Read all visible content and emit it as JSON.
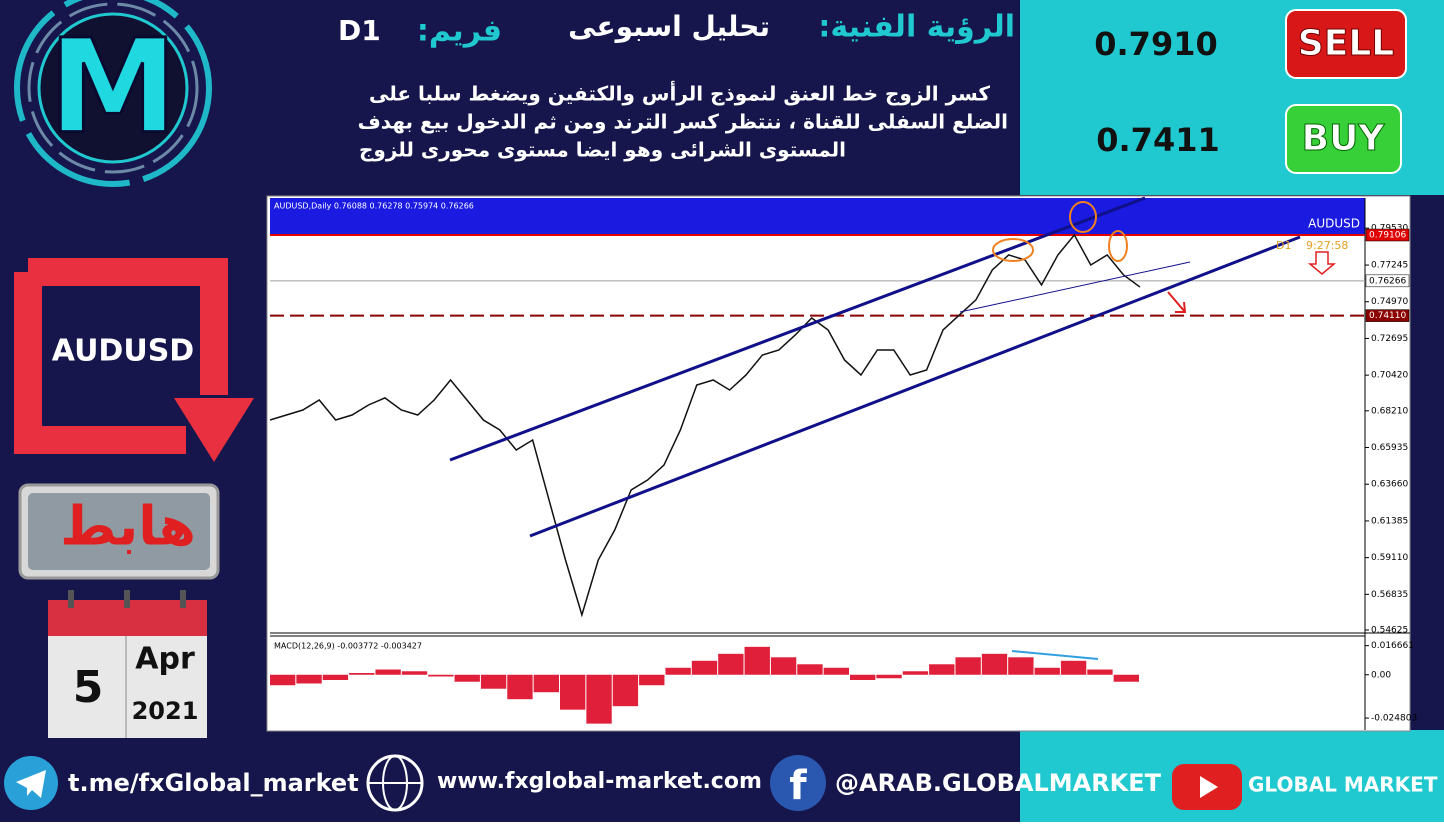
{
  "header": {
    "title_label": "الرؤية الفنية:",
    "analysis": "تحليل اسبوعى",
    "frame_label": "فريم:",
    "frame": "D1"
  },
  "description": [
    "كسر الزوج خط العنق لنموذج الرأس والكتفين ويضغط سلبا على",
    "الضلع السفلى للقناة ، ننتظر كسر الترند ومن ثم الدخول بيع بهدف",
    "المستوى الشرائى وهو ايضا مستوى محورى للزوج"
  ],
  "signals": [
    {
      "price": "0.7910",
      "action": "SELL"
    },
    {
      "price": "0.7411",
      "action": "BUY"
    }
  ],
  "logo": "M",
  "pair": "AUDUSD",
  "direction": "هابط",
  "date": {
    "day": "5",
    "month": "Apr",
    "year": "2021"
  },
  "chart": {
    "title": "AUDUSD,Daily  0.76088 0.76278 0.75974 0.76266",
    "symbol": "AUDUSD",
    "timeframe": "D1",
    "timer": "9:27:58",
    "ylim": [
      0.545,
      0.814
    ],
    "yticks": [
      {
        "value": 0.7953,
        "label": "0.79530"
      },
      {
        "value": 0.77245,
        "label": "0.77245"
      },
      {
        "value": 0.7497,
        "label": "0.74970"
      },
      {
        "value": 0.72695,
        "label": "0.72695"
      },
      {
        "value": 0.7042,
        "label": "0.70420"
      },
      {
        "value": 0.6821,
        "label": "0.68210"
      },
      {
        "value": 0.65935,
        "label": "0.65935"
      },
      {
        "value": 0.6366,
        "label": "0.63660"
      },
      {
        "value": 0.61385,
        "label": "0.61385"
      },
      {
        "value": 0.5911,
        "label": "0.59110"
      },
      {
        "value": 0.56835,
        "label": "0.56835"
      },
      {
        "value": 0.54625,
        "label": "0.54625"
      }
    ],
    "price_lines": [
      {
        "value": 0.79106,
        "label": "0.79106",
        "color": "#e00000"
      },
      {
        "value": 0.76266,
        "label": "0.76266",
        "color": "#a0a0a0"
      },
      {
        "value": 0.7411,
        "label": "0.74110",
        "color": "#8b0000"
      }
    ],
    "closes": [
      0.6764,
      0.6795,
      0.6826,
      0.6888,
      0.6764,
      0.6795,
      0.6857,
      0.6901,
      0.6826,
      0.6795,
      0.6888,
      0.7012,
      0.6888,
      0.6764,
      0.6702,
      0.6578,
      0.664,
      0.6268,
      0.5897,
      0.5556,
      0.5897,
      0.6082,
      0.633,
      0.6392,
      0.6485,
      0.6702,
      0.6981,
      0.7012,
      0.695,
      0.7043,
      0.7167,
      0.7198,
      0.7291,
      0.7396,
      0.7322,
      0.7136,
      0.7043,
      0.7198,
      0.7198,
      0.7043,
      0.7074,
      0.7322,
      0.7415,
      0.7508,
      0.7694,
      0.7787,
      0.7756,
      0.7601,
      0.7787,
      0.7911,
      0.7725,
      0.7787,
      0.7663,
      0.7588
    ],
    "indicator": "MACD(12,26,9) -0.003772 -0.003427",
    "macd_ylim": [
      -0.0305,
      0.0222
    ],
    "macd_ticks": [
      0.016661,
      {
        "value": 0,
        "label": "0.00"
      },
      -0.024803
    ],
    "macd": [
      -0.006,
      -0.005,
      -0.003,
      0.001,
      0.003,
      0.002,
      -0.001,
      -0.004,
      -0.008,
      -0.014,
      -0.01,
      -0.02,
      -0.028,
      -0.018,
      -0.006,
      0.004,
      0.008,
      0.012,
      0.016,
      0.01,
      0.006,
      0.004,
      -0.003,
      -0.002,
      0.002,
      0.006,
      0.01,
      0.012,
      0.01,
      0.004,
      0.008,
      0.003,
      -0.004
    ]
  },
  "footer": {
    "telegram": "t.me/fxGlobal_market",
    "website": "www.fxglobal-market.com",
    "facebook": "@ARAB.GLOBALMARKET",
    "youtube": "GLOBAL MARKET"
  }
}
